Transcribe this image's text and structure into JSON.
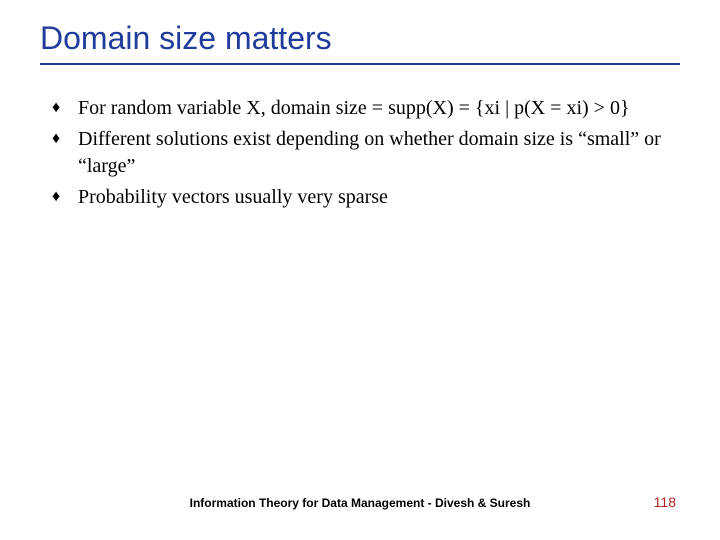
{
  "title": "Domain size matters",
  "title_color": "#1f3b9b",
  "title_fontsize": 32,
  "underline_color": "#1f3b9b",
  "bullets": [
    "For random variable X, domain size = supp(X) = {xi | p(X = xi) > 0}",
    "Different solutions exist depending on whether domain size is “small” or “large”",
    "Probability vectors usually very sparse"
  ],
  "bullet_marker": "♦",
  "bullet_fontsize": 20,
  "bullet_color": "#000000",
  "footer": "Information Theory for Data Management - Divesh & Suresh",
  "footer_fontsize": 12,
  "footer_color": "#000000",
  "page_number": "118",
  "page_number_color": "#b22222",
  "page_number_fontsize": 14,
  "background_color": "#ffffff",
  "slide_width": 720,
  "slide_height": 540
}
